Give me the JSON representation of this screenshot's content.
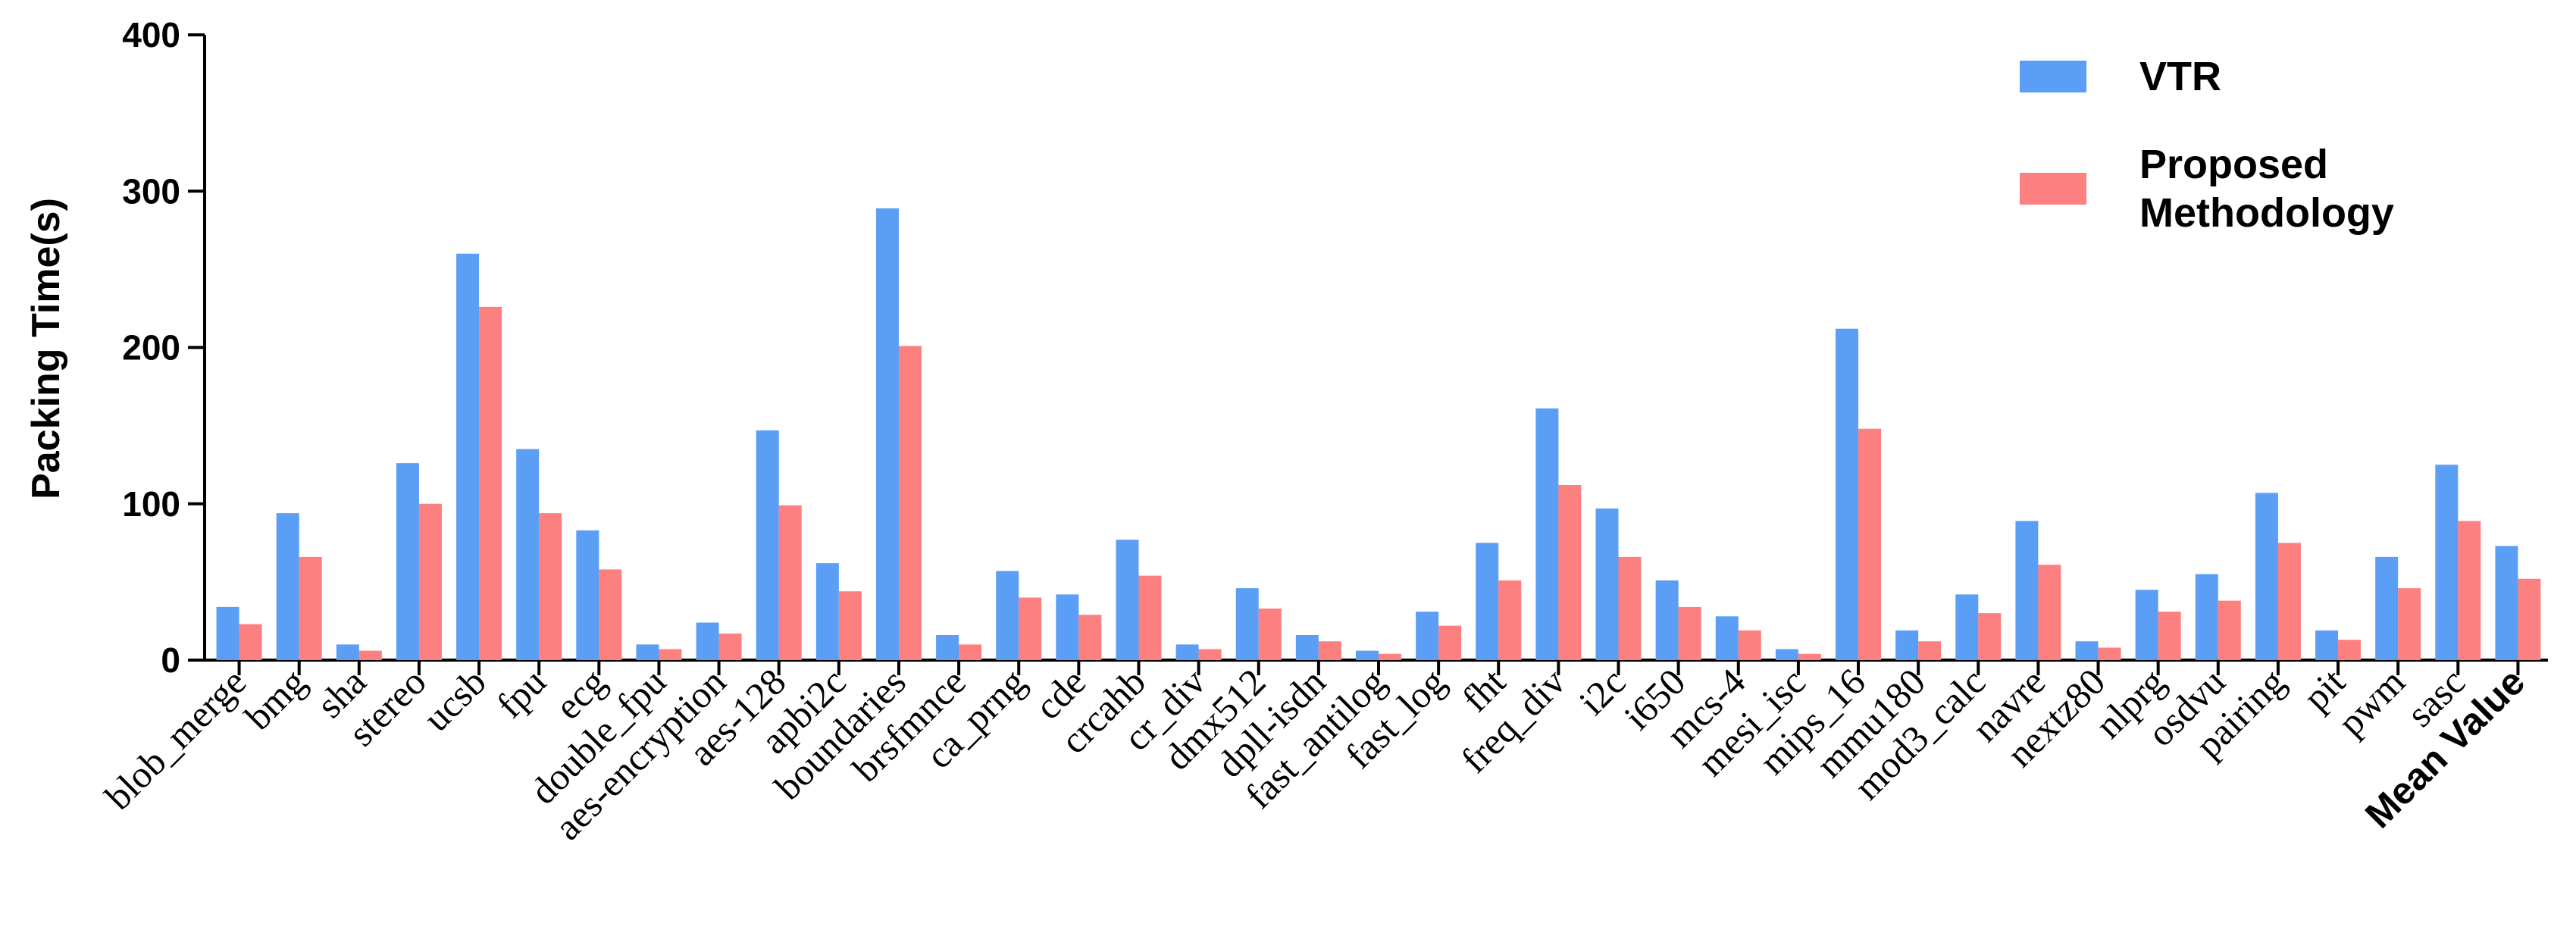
{
  "chart_data": {
    "type": "bar",
    "title": "",
    "xlabel": "",
    "ylabel": "Packing Time(s)",
    "ylim": [
      0,
      400
    ],
    "yticks": [
      0,
      100,
      200,
      300,
      400
    ],
    "grid": false,
    "legend_position": "top-right",
    "categories": [
      "blob_merge",
      "bmg",
      "sha",
      "stereo",
      "ucsb",
      "fpu",
      "ecg",
      "double_fpu",
      "aes-encryption",
      "aes-128",
      "apbi2c",
      "boundaries",
      "brsfmnce",
      "ca_prng",
      "cde",
      "crcahb",
      "cr_div",
      "dmx512",
      "dpll-isdn",
      "fast_antilog",
      "fast_log",
      "fht",
      "freq_div",
      "i2c",
      "i650",
      "mcs-4",
      "mesi_isc",
      "mips_16",
      "mmu180",
      "mod3_calc",
      "navre",
      "nextz80",
      "nlprg",
      "osdvu",
      "pairing",
      "pit",
      "pwm",
      "sasc",
      "Mean Value"
    ],
    "series": [
      {
        "name": "VTR",
        "color": "#5b9ef5",
        "values": [
          34,
          94,
          10,
          126,
          260,
          135,
          83,
          10,
          24,
          147,
          62,
          289,
          16,
          57,
          42,
          77,
          10,
          46,
          16,
          6,
          31,
          75,
          161,
          97,
          51,
          28,
          7,
          212,
          19,
          42,
          89,
          12,
          45,
          55,
          107,
          19,
          66,
          125,
          73
        ]
      },
      {
        "name": "Proposed\nMethodology",
        "color": "#fc8080",
        "values": [
          23,
          66,
          6,
          100,
          226,
          94,
          58,
          7,
          17,
          99,
          44,
          201,
          10,
          40,
          29,
          54,
          7,
          33,
          12,
          4,
          22,
          51,
          112,
          66,
          34,
          19,
          4,
          148,
          12,
          30,
          61,
          8,
          31,
          38,
          75,
          13,
          46,
          89,
          52
        ]
      }
    ]
  }
}
